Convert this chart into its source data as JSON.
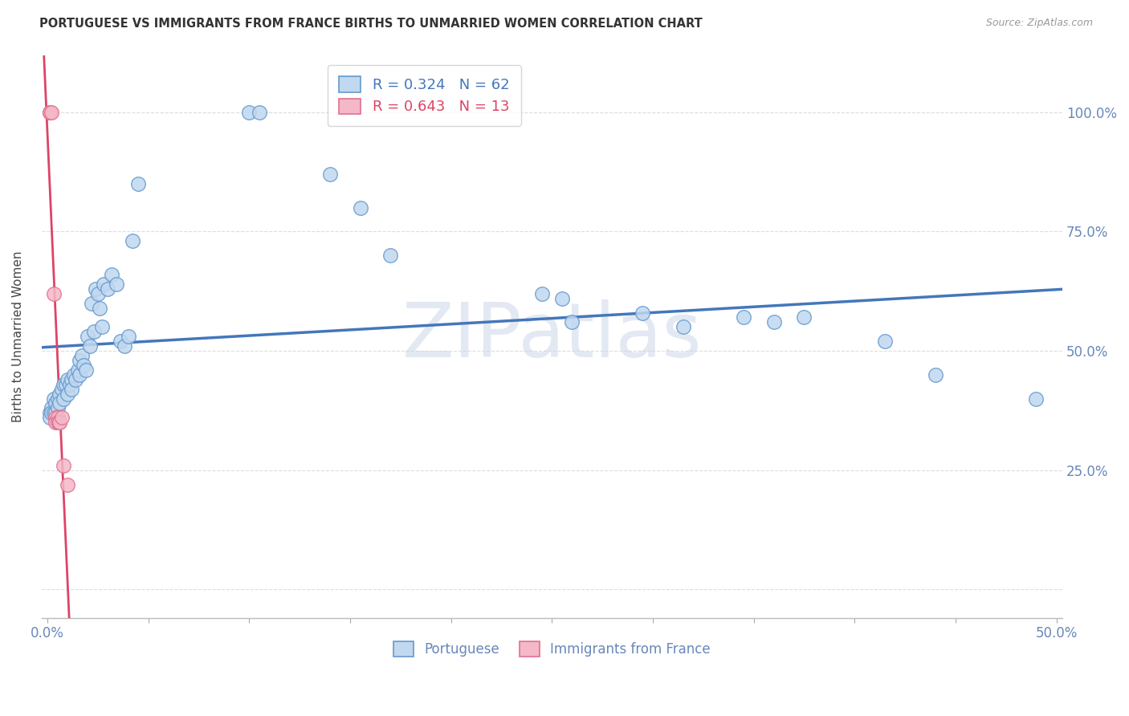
{
  "title": "PORTUGUESE VS IMMIGRANTS FROM FRANCE BIRTHS TO UNMARRIED WOMEN CORRELATION CHART",
  "source": "Source: ZipAtlas.com",
  "ylabel": "Births to Unmarried Women",
  "xlim": [
    -0.003,
    0.503
  ],
  "ylim": [
    -0.06,
    1.12
  ],
  "ytick_positions": [
    0.0,
    0.25,
    0.5,
    0.75,
    1.0
  ],
  "ytick_labels": [
    "",
    "25.0%",
    "50.0%",
    "75.0%",
    "100.0%"
  ],
  "xtick_positions": [
    0.0,
    0.05,
    0.1,
    0.15,
    0.2,
    0.25,
    0.3,
    0.35,
    0.4,
    0.45,
    0.5
  ],
  "xtick_labels": [
    "0.0%",
    "",
    "",
    "",
    "",
    "",
    "",
    "",
    "",
    "",
    "50.0%"
  ],
  "blue_fill": "#c0d8f0",
  "blue_edge": "#6699cc",
  "pink_fill": "#f4b8c8",
  "pink_edge": "#e07090",
  "blue_line": "#4477bb",
  "pink_line": "#dd4466",
  "legend_label1": "R = 0.324   N = 62",
  "legend_label2": "R = 0.643   N = 13",
  "watermark": "ZIPatlas",
  "watermark_color": "#ccd8e8",
  "blue_scatter_x": [
    0.001,
    0.001,
    0.002,
    0.002,
    0.003,
    0.003,
    0.004,
    0.004,
    0.005,
    0.005,
    0.006,
    0.006,
    0.007,
    0.008,
    0.008,
    0.009,
    0.01,
    0.01,
    0.011,
    0.012,
    0.012,
    0.013,
    0.014,
    0.015,
    0.016,
    0.016,
    0.017,
    0.018,
    0.019,
    0.02,
    0.021,
    0.022,
    0.023,
    0.024,
    0.025,
    0.026,
    0.027,
    0.028,
    0.03,
    0.032,
    0.034,
    0.036,
    0.038,
    0.04,
    0.042,
    0.045,
    0.1,
    0.105,
    0.14,
    0.155,
    0.17,
    0.245,
    0.255,
    0.26,
    0.295,
    0.315,
    0.345,
    0.36,
    0.375,
    0.415,
    0.44,
    0.49
  ],
  "blue_scatter_y": [
    0.37,
    0.36,
    0.38,
    0.37,
    0.4,
    0.37,
    0.39,
    0.37,
    0.4,
    0.38,
    0.41,
    0.39,
    0.42,
    0.43,
    0.4,
    0.43,
    0.44,
    0.41,
    0.43,
    0.44,
    0.42,
    0.45,
    0.44,
    0.46,
    0.48,
    0.45,
    0.49,
    0.47,
    0.46,
    0.53,
    0.51,
    0.6,
    0.54,
    0.63,
    0.62,
    0.59,
    0.55,
    0.64,
    0.63,
    0.66,
    0.64,
    0.52,
    0.51,
    0.53,
    0.73,
    0.85,
    1.0,
    1.0,
    0.87,
    0.8,
    0.7,
    0.62,
    0.61,
    0.56,
    0.58,
    0.55,
    0.57,
    0.56,
    0.57,
    0.52,
    0.45,
    0.4
  ],
  "pink_scatter_x": [
    0.001,
    0.001,
    0.002,
    0.003,
    0.004,
    0.004,
    0.005,
    0.005,
    0.006,
    0.006,
    0.007,
    0.008,
    0.01
  ],
  "pink_scatter_y": [
    1.0,
    1.0,
    1.0,
    0.62,
    0.36,
    0.35,
    0.36,
    0.35,
    0.35,
    0.35,
    0.36,
    0.26,
    0.22
  ]
}
